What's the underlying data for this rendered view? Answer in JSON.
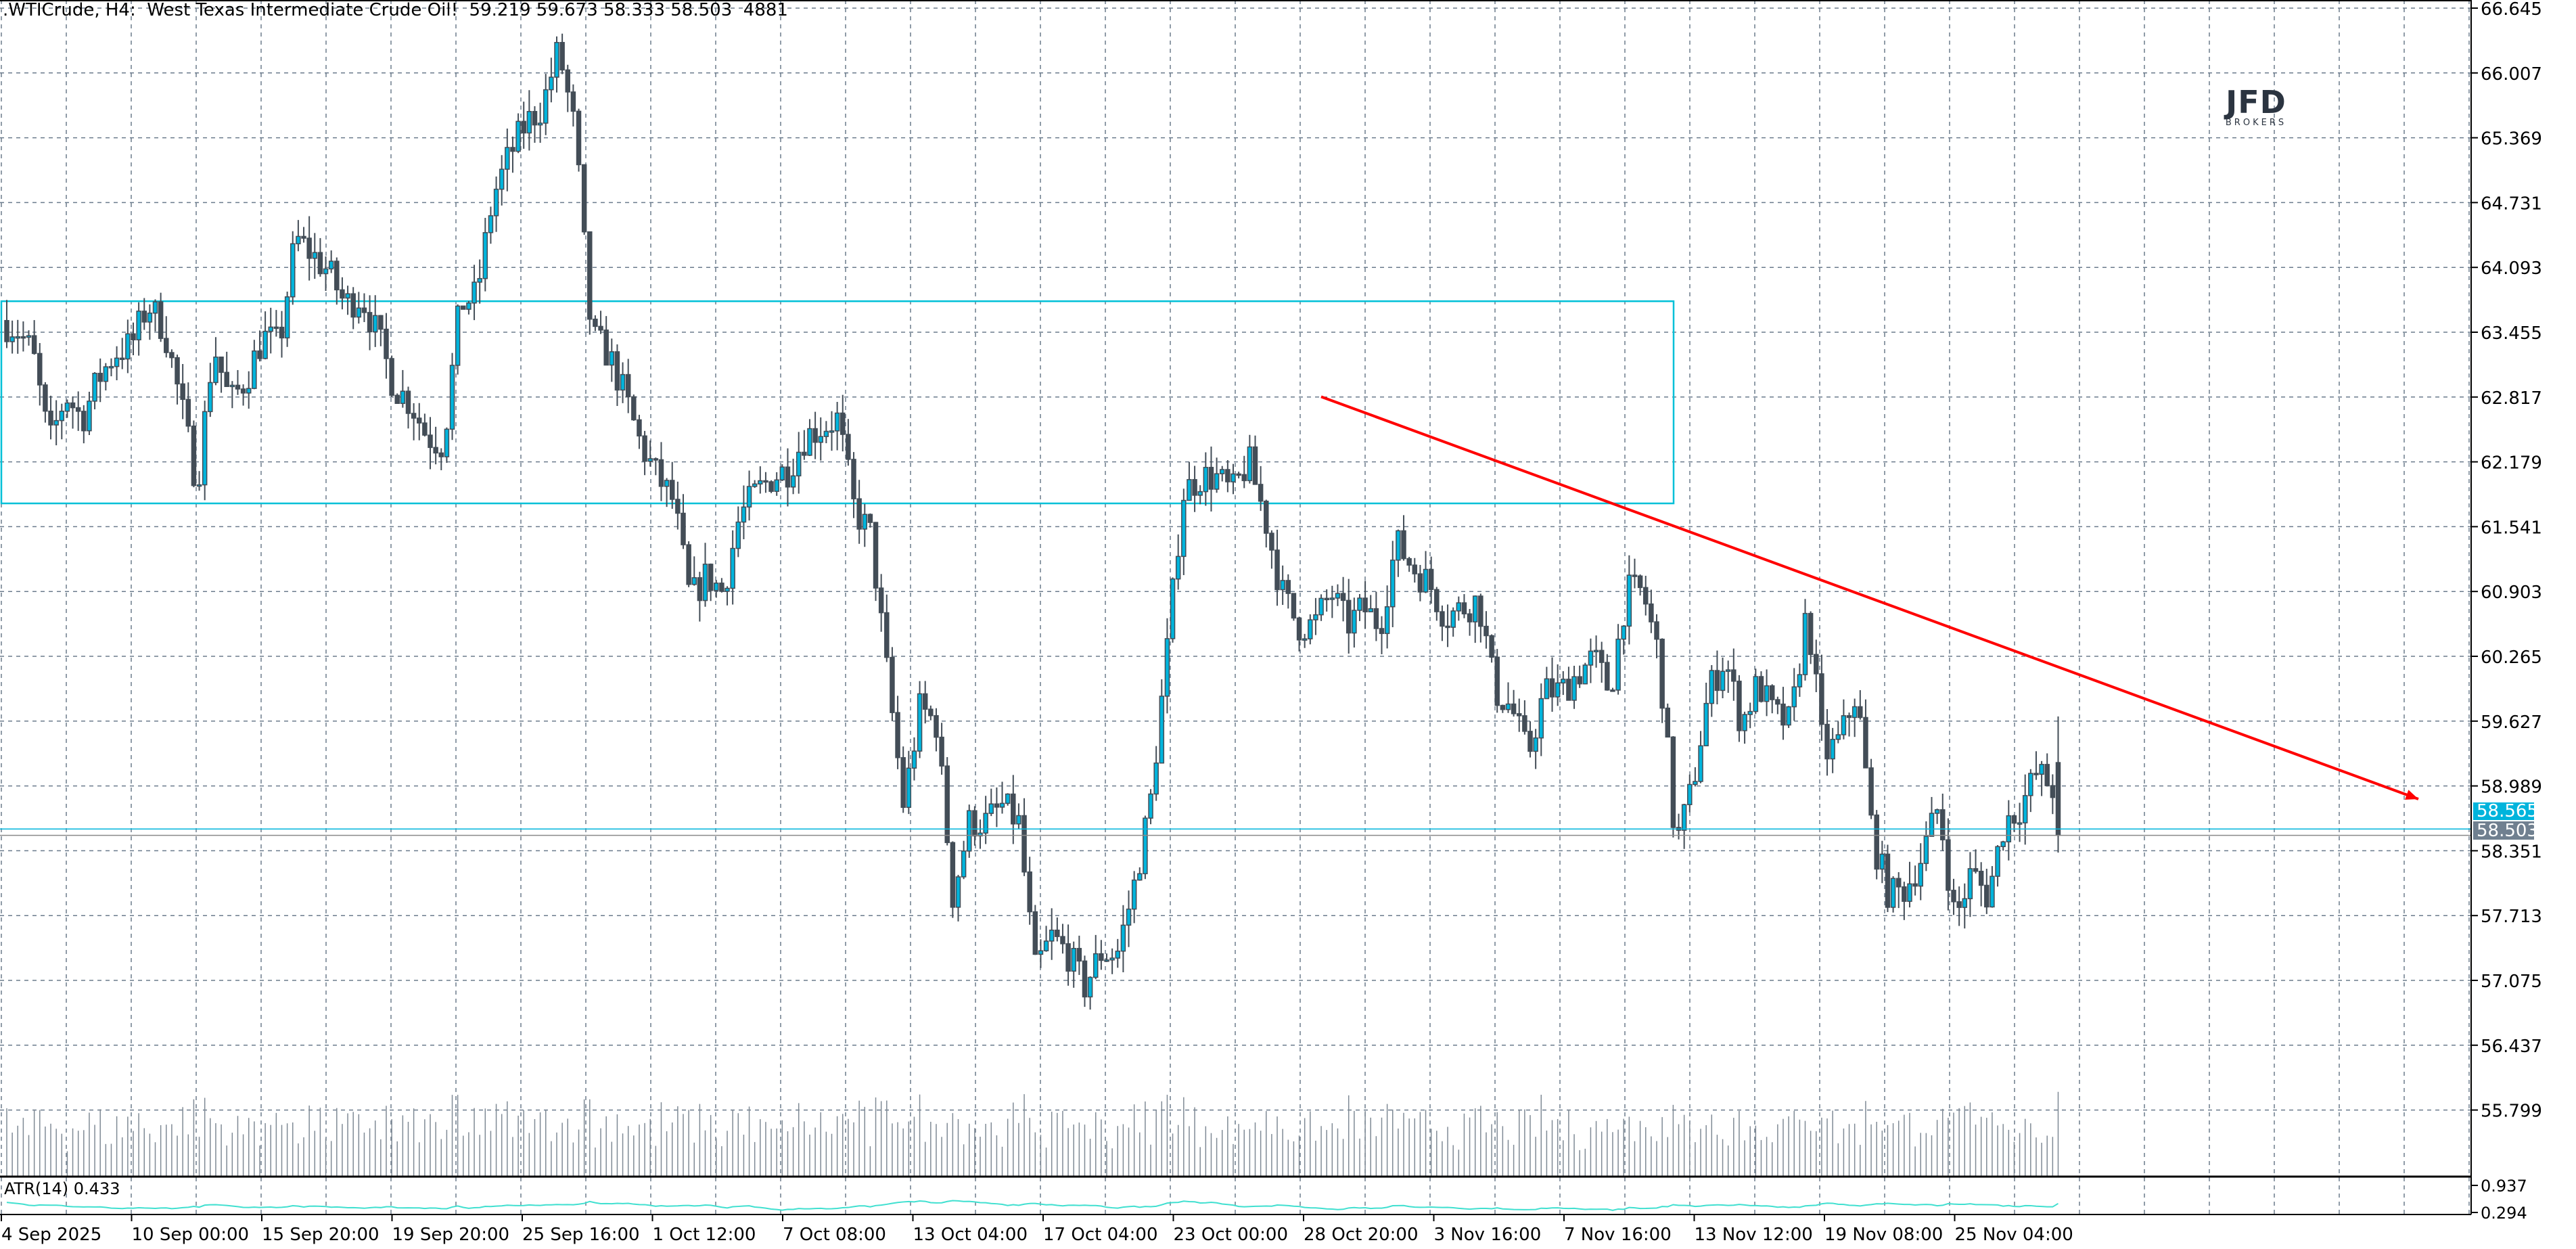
{
  "header": {
    "symbol": ".WTICrude, H4:",
    "description": "West Texas Intermediate Crude Oil!",
    "ohlc": "59.219 59.673 58.333 58.503",
    "volume": "4881"
  },
  "logo": {
    "text": "JFD",
    "sub": "BROKERS"
  },
  "colors": {
    "bull": "#00b4dc",
    "bear": "#434d57",
    "grid": "#6b7b8c",
    "rectangle": "#00c0d8",
    "trendline": "#ff0000",
    "atr": "#40e0d0",
    "bid_line": "#00b4dc",
    "last_price_label": "#708090"
  },
  "chart_data": {
    "type": "candlestick",
    "timeframe": "H4",
    "y_ticks": [
      "66.645",
      "66.007",
      "65.369",
      "64.731",
      "64.093",
      "63.455",
      "62.817",
      "62.179",
      "61.541",
      "60.903",
      "60.265",
      "59.627",
      "58.989",
      "58.351",
      "57.713",
      "57.075",
      "56.437",
      "55.799"
    ],
    "x_ticks": [
      "4 Sep 2025",
      "10 Sep 00:00",
      "15 Sep 20:00",
      "19 Sep 20:00",
      "25 Sep 16:00",
      "1 Oct 12:00",
      "7 Oct 08:00",
      "13 Oct 04:00",
      "17 Oct 04:00",
      "23 Oct 00:00",
      "28 Oct 20:00",
      "3 Nov 16:00",
      "7 Nov 16:00",
      "13 Nov 12:00",
      "19 Nov 08:00",
      "25 Nov 04:00"
    ],
    "approx_close_path": [
      63.57,
      63.49,
      63.25,
      62.35,
      62.84,
      62.6,
      63.0,
      63.25,
      63.33,
      63.73,
      63.49,
      62.76,
      61.95,
      63.33,
      62.76,
      63.0,
      63.41,
      63.33,
      64.38,
      64.22,
      64.05,
      63.73,
      63.81,
      63.41,
      62.92,
      62.76,
      62.43,
      62.35,
      63.73,
      63.81,
      64.78,
      65.19,
      65.51,
      65.67,
      66.24,
      65.43,
      63.41,
      63.25,
      62.84,
      62.35,
      62.03,
      61.79,
      60.82,
      61.06,
      60.9,
      61.63,
      61.87,
      62.03,
      62.11,
      62.43,
      62.52,
      62.6,
      61.71,
      61.46,
      60.09,
      58.79,
      59.76,
      59.6,
      57.9,
      58.63,
      58.63,
      58.79,
      58.63,
      57.17,
      57.5,
      57.34,
      57.01,
      57.34,
      57.34,
      57.98,
      58.79,
      60.25,
      61.87,
      62.03,
      62.03,
      61.87,
      62.19,
      61.63,
      60.9,
      60.57,
      60.57,
      60.9,
      60.57,
      60.74,
      60.57,
      61.38,
      61.14,
      60.98,
      60.65,
      60.74,
      60.82,
      59.92,
      59.76,
      59.28,
      59.92,
      59.92,
      60.09,
      60.25,
      59.92,
      60.9,
      60.9,
      60.25,
      58.39,
      58.96,
      59.92,
      60.25,
      59.6,
      60.0,
      59.68,
      59.6,
      60.74,
      59.28,
      59.44,
      59.92,
      58.47,
      57.9,
      57.98,
      58.3,
      58.79,
      57.66,
      58.14,
      57.9,
      58.63,
      58.79,
      59.12,
      58.96
    ],
    "last_bar": {
      "open": 59.219,
      "high": 59.673,
      "low": 58.333,
      "close": 58.503,
      "volume": 4881
    },
    "session_high": 66.645,
    "session_low": 56.4,
    "zone_rectangle": {
      "top": 63.76,
      "bottom": 61.77,
      "from": "4 Sep 2025",
      "to": "13 Nov 12:00"
    },
    "trendline": {
      "start_price": 62.82,
      "start_time": "28 Oct 20:00",
      "end_price": 58.86,
      "end_arrow": true
    },
    "bid_price": "58.565",
    "last_price": "58.503",
    "indicator": {
      "label": "ATR(14) 0.433",
      "y_ticks": [
        "0.937",
        "0.294"
      ]
    },
    "grid": true
  }
}
